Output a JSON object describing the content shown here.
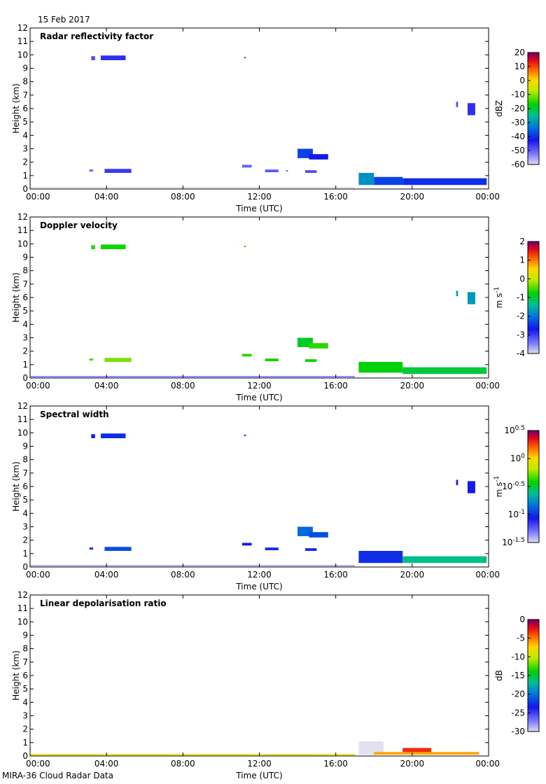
{
  "header": {
    "date": "15 Feb 2017"
  },
  "footer": {
    "caption": "MIRA-36 Cloud Radar Data"
  },
  "chart_data": [
    {
      "type": "heatmap",
      "title": "Radar reflectivity factor",
      "xlabel": "Time (UTC)",
      "ylabel": "Height (km)",
      "xlim": [
        0,
        24
      ],
      "ylim": [
        0,
        12
      ],
      "x_ticks": [
        "00:00",
        "04:00",
        "08:00",
        "12:00",
        "16:00",
        "20:00",
        "00:00"
      ],
      "y_ticks": [
        "0",
        "1",
        "2",
        "3",
        "4",
        "5",
        "6",
        "7",
        "8",
        "9",
        "10",
        "11",
        "12"
      ],
      "colorbar": {
        "unit": "dBZ",
        "range": [
          -60,
          20
        ],
        "ticks": [
          "20",
          "10",
          "0",
          "-10",
          "-20",
          "-30",
          "-40",
          "-50",
          "-60"
        ]
      },
      "features": [
        {
          "t0": 3.2,
          "t1": 3.4,
          "h0": 9.6,
          "h1": 9.9,
          "value": -48
        },
        {
          "t0": 3.7,
          "t1": 5.0,
          "h0": 9.6,
          "h1": 9.95,
          "value": -45
        },
        {
          "t0": 11.2,
          "t1": 11.3,
          "h0": 9.75,
          "h1": 9.85,
          "value": -48
        },
        {
          "t0": 3.1,
          "t1": 3.3,
          "h0": 1.3,
          "h1": 1.45,
          "value": -50
        },
        {
          "t0": 3.9,
          "t1": 5.3,
          "h0": 1.2,
          "h1": 1.5,
          "value": -46
        },
        {
          "t0": 11.1,
          "t1": 11.6,
          "h0": 1.6,
          "h1": 1.8,
          "value": -50
        },
        {
          "t0": 12.3,
          "t1": 13.0,
          "h0": 1.25,
          "h1": 1.45,
          "value": -49
        },
        {
          "t0": 13.4,
          "t1": 13.5,
          "h0": 1.3,
          "h1": 1.4,
          "value": -50
        },
        {
          "t0": 14.0,
          "t1": 14.8,
          "h0": 2.3,
          "h1": 3.0,
          "value": -38
        },
        {
          "t0": 14.6,
          "t1": 15.6,
          "h0": 2.2,
          "h1": 2.6,
          "value": -42
        },
        {
          "t0": 14.4,
          "t1": 15.0,
          "h0": 1.2,
          "h1": 1.4,
          "value": -48
        },
        {
          "t0": 17.2,
          "t1": 18.0,
          "h0": 0.3,
          "h1": 1.2,
          "value": -30
        },
        {
          "t0": 18.0,
          "t1": 19.5,
          "h0": 0.3,
          "h1": 0.9,
          "value": -38
        },
        {
          "t0": 19.5,
          "t1": 23.9,
          "h0": 0.3,
          "h1": 0.8,
          "value": -40
        },
        {
          "t0": 22.3,
          "t1": 22.4,
          "h0": 6.1,
          "h1": 6.5,
          "value": -48
        },
        {
          "t0": 22.9,
          "t1": 23.3,
          "h0": 5.5,
          "h1": 6.4,
          "value": -45
        },
        {
          "t0": 0.0,
          "t1": 17.0,
          "h0": 0.05,
          "h1": 0.15,
          "value": -60
        }
      ]
    },
    {
      "type": "heatmap",
      "title": "Doppler velocity",
      "xlabel": "Time (UTC)",
      "ylabel": "Height (km)",
      "xlim": [
        0,
        24
      ],
      "ylim": [
        0,
        12
      ],
      "x_ticks": [
        "00:00",
        "04:00",
        "08:00",
        "12:00",
        "16:00",
        "20:00",
        "00:00"
      ],
      "y_ticks": [
        "0",
        "1",
        "2",
        "3",
        "4",
        "5",
        "6",
        "7",
        "8",
        "9",
        "10",
        "11",
        "12"
      ],
      "colorbar": {
        "unit": "m s-1",
        "range": [
          -4,
          2
        ],
        "ticks": [
          "2",
          "1",
          "0",
          "-1",
          "-2",
          "-3",
          "-4"
        ]
      },
      "features": [
        {
          "t0": 3.2,
          "t1": 3.4,
          "h0": 9.6,
          "h1": 9.9,
          "value": -0.6
        },
        {
          "t0": 3.7,
          "t1": 5.0,
          "h0": 9.6,
          "h1": 9.95,
          "value": -0.7
        },
        {
          "t0": 11.2,
          "t1": 11.3,
          "h0": 9.75,
          "h1": 9.85,
          "value": -0.6
        },
        {
          "t0": 3.1,
          "t1": 3.3,
          "h0": 1.3,
          "h1": 1.45,
          "value": -0.5
        },
        {
          "t0": 3.9,
          "t1": 5.3,
          "h0": 1.2,
          "h1": 1.5,
          "value": -0.3
        },
        {
          "t0": 11.1,
          "t1": 11.6,
          "h0": 1.6,
          "h1": 1.8,
          "value": -0.6
        },
        {
          "t0": 12.3,
          "t1": 13.0,
          "h0": 1.25,
          "h1": 1.45,
          "value": -0.7
        },
        {
          "t0": 14.0,
          "t1": 14.8,
          "h0": 2.3,
          "h1": 3.0,
          "value": -0.9
        },
        {
          "t0": 14.6,
          "t1": 15.6,
          "h0": 2.2,
          "h1": 2.6,
          "value": -0.6
        },
        {
          "t0": 14.4,
          "t1": 15.0,
          "h0": 1.2,
          "h1": 1.4,
          "value": -0.7
        },
        {
          "t0": 17.2,
          "t1": 19.5,
          "h0": 0.4,
          "h1": 1.2,
          "value": -0.8
        },
        {
          "t0": 19.5,
          "t1": 23.9,
          "h0": 0.3,
          "h1": 0.8,
          "value": -1.0
        },
        {
          "t0": 22.3,
          "t1": 22.4,
          "h0": 6.1,
          "h1": 6.5,
          "value": -1.6
        },
        {
          "t0": 22.9,
          "t1": 23.3,
          "h0": 5.5,
          "h1": 6.4,
          "value": -1.7
        },
        {
          "t0": 0.0,
          "t1": 17.0,
          "h0": 0.05,
          "h1": 0.15,
          "value": -3.5
        }
      ]
    },
    {
      "type": "heatmap",
      "title": "Spectral width",
      "xlabel": "Time (UTC)",
      "ylabel": "Height (km)",
      "xlim": [
        0,
        24
      ],
      "ylim": [
        0,
        12
      ],
      "x_ticks": [
        "00:00",
        "04:00",
        "08:00",
        "12:00",
        "16:00",
        "20:00",
        "00:00"
      ],
      "y_ticks": [
        "0",
        "1",
        "2",
        "3",
        "4",
        "5",
        "6",
        "7",
        "8",
        "9",
        "10",
        "11",
        "12"
      ],
      "colorbar": {
        "unit": "m s-1",
        "scale": "log",
        "range": [
          0.0316,
          3.16
        ],
        "ticks": [
          "10^0.5",
          "10^0",
          "10^-0.5",
          "10^-1",
          "10^-1.5"
        ]
      },
      "features": [
        {
          "t0": 3.2,
          "t1": 3.4,
          "h0": 9.6,
          "h1": 9.9,
          "value": 0.09
        },
        {
          "t0": 3.7,
          "t1": 5.0,
          "h0": 9.6,
          "h1": 9.95,
          "value": 0.1
        },
        {
          "t0": 11.2,
          "t1": 11.3,
          "h0": 9.75,
          "h1": 9.85,
          "value": 0.09
        },
        {
          "t0": 3.1,
          "t1": 3.3,
          "h0": 1.3,
          "h1": 1.45,
          "value": 0.1
        },
        {
          "t0": 3.9,
          "t1": 5.3,
          "h0": 1.2,
          "h1": 1.5,
          "value": 0.12
        },
        {
          "t0": 11.1,
          "t1": 11.6,
          "h0": 1.6,
          "h1": 1.8,
          "value": 0.09
        },
        {
          "t0": 12.3,
          "t1": 13.0,
          "h0": 1.25,
          "h1": 1.45,
          "value": 0.1
        },
        {
          "t0": 14.0,
          "t1": 14.8,
          "h0": 2.3,
          "h1": 3.0,
          "value": 0.14
        },
        {
          "t0": 14.6,
          "t1": 15.6,
          "h0": 2.2,
          "h1": 2.6,
          "value": 0.12
        },
        {
          "t0": 14.4,
          "t1": 15.0,
          "h0": 1.2,
          "h1": 1.4,
          "value": 0.1
        },
        {
          "t0": 17.2,
          "t1": 19.5,
          "h0": 0.3,
          "h1": 1.2,
          "value": 0.1
        },
        {
          "t0": 19.5,
          "t1": 23.9,
          "h0": 0.3,
          "h1": 0.8,
          "value": 0.25
        },
        {
          "t0": 22.3,
          "t1": 22.4,
          "h0": 6.1,
          "h1": 6.5,
          "value": 0.09
        },
        {
          "t0": 22.9,
          "t1": 23.3,
          "h0": 5.5,
          "h1": 6.4,
          "value": 0.09
        },
        {
          "t0": 0.0,
          "t1": 17.0,
          "h0": 0.05,
          "h1": 0.15,
          "value": 0.04
        }
      ]
    },
    {
      "type": "heatmap",
      "title": "Linear depolarisation ratio",
      "xlabel": "Time (UTC)",
      "ylabel": "Height (km)",
      "xlim": [
        0,
        24
      ],
      "ylim": [
        0,
        12
      ],
      "x_ticks": [
        "00:00",
        "04:00",
        "08:00",
        "12:00",
        "16:00",
        "20:00",
        "00:00"
      ],
      "y_ticks": [
        "0",
        "1",
        "2",
        "3",
        "4",
        "5",
        "6",
        "7",
        "8",
        "9",
        "10",
        "11",
        "12"
      ],
      "colorbar": {
        "unit": "dB",
        "range": [
          -30,
          0
        ],
        "ticks": [
          "0",
          "-5",
          "-10",
          "-15",
          "-20",
          "-25",
          "-30"
        ]
      },
      "features": [
        {
          "t0": 0.0,
          "t1": 17.0,
          "h0": 0.05,
          "h1": 0.15,
          "value": -8
        },
        {
          "t0": 17.2,
          "t1": 18.5,
          "h0": 0.1,
          "h1": 1.1,
          "value": -30
        },
        {
          "t0": 19.5,
          "t1": 21.0,
          "h0": 0.2,
          "h1": 0.6,
          "value": -3
        },
        {
          "t0": 18.0,
          "t1": 23.5,
          "h0": 0.1,
          "h1": 0.3,
          "value": -6
        }
      ]
    }
  ]
}
